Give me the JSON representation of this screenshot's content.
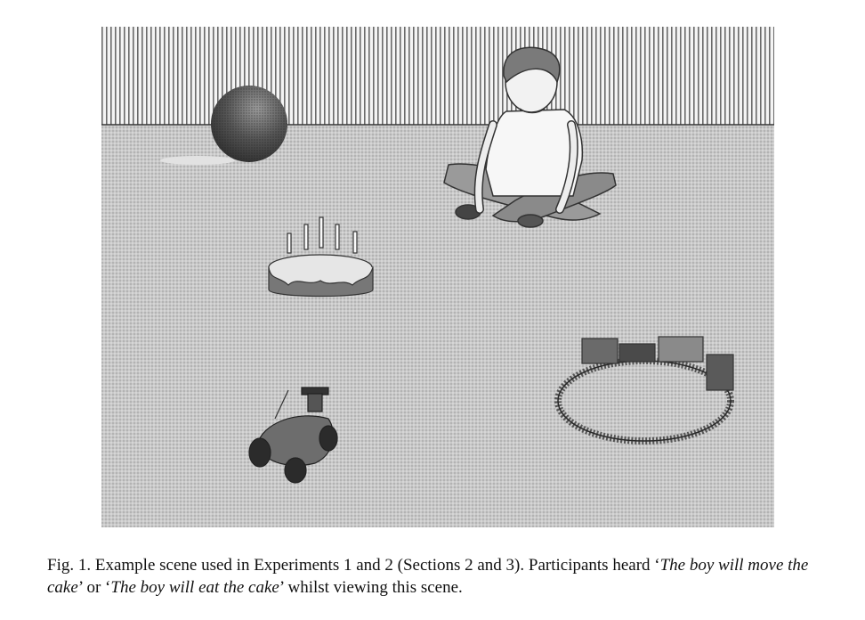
{
  "figure": {
    "description_icons": [
      "wall-stripes",
      "carpet-floor",
      "ball-icon",
      "boy-figure",
      "cake-icon",
      "train-icon",
      "toy-car-icon"
    ]
  },
  "caption": {
    "label": "Fig. 1.",
    "text_1": " Example scene used in Experiments 1 and 2 (Sections 2 and 3). Participants heard ‘",
    "quote_1": "The boy will move the cake",
    "text_2": "’ or ‘",
    "quote_2": "The boy will eat the cake",
    "text_3": "’ whilst viewing this scene."
  }
}
